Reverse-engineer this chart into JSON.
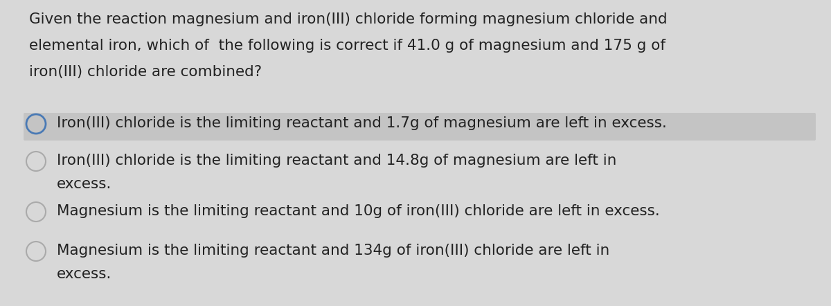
{
  "background_color": "#d8d8d8",
  "question_text": [
    "Given the reaction magnesium and iron(III) chloride forming magnesium chloride and",
    "elemental iron, which of  the following is correct if 41.0 g of magnesium and 175 g of",
    "iron(III) chloride are combined?"
  ],
  "options": [
    {
      "lines": [
        "Iron(III) chloride is the limiting reactant and 1.7g of magnesium are left in excess."
      ],
      "highlighted": true,
      "circle_color": "#4a7ab5",
      "circle_linewidth": 2.0
    },
    {
      "lines": [
        "Iron(III) chloride is the limiting reactant and 14.8g of magnesium are left in",
        "excess."
      ],
      "highlighted": false,
      "circle_color": "#aaaaaa",
      "circle_linewidth": 1.5
    },
    {
      "lines": [
        "Magnesium is the limiting reactant and 10g of iron(III) chloride are left in excess."
      ],
      "highlighted": false,
      "circle_color": "#aaaaaa",
      "circle_linewidth": 1.5
    },
    {
      "lines": [
        "Magnesium is the limiting reactant and 134g of iron(III) chloride are left in",
        "excess."
      ],
      "highlighted": false,
      "circle_color": "#aaaaaa",
      "circle_linewidth": 1.5
    }
  ],
  "text_color": "#222222",
  "highlight_color": "#c4c4c4",
  "font_size_question": 15.5,
  "font_size_option": 15.5
}
